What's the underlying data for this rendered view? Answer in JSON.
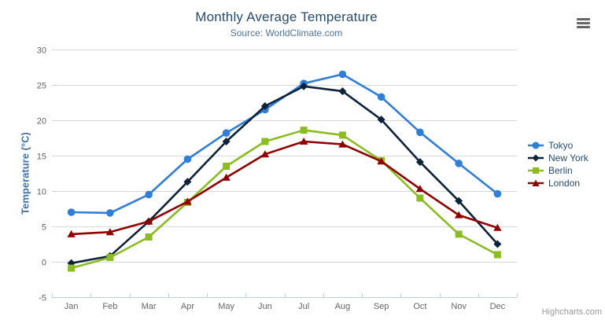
{
  "header": {
    "title": "Monthly Average Temperature",
    "subtitle": "Source: WorldClimate.com"
  },
  "credits": "Highcharts.com",
  "icons": {
    "context_menu": "hamburger-menu"
  },
  "colors": {
    "title": "#274b6d",
    "subtitle": "#4d759e",
    "legend_text": "#274b6d",
    "axis_label": "#666666",
    "axis_line": "#c0d0e0",
    "gridline": "#d8d8d8",
    "yaxis_title": "#4572a7",
    "credits": "#999999"
  },
  "chart_data": {
    "type": "line",
    "title": "Monthly Average Temperature",
    "subtitle": "Source: WorldClimate.com",
    "xlabel": "",
    "ylabel": "Temperature (°C)",
    "ylim": [
      -5,
      30
    ],
    "ytick_step": 5,
    "yticks": [
      -5,
      0,
      5,
      10,
      15,
      20,
      25,
      30
    ],
    "grid": true,
    "legend_position": "right",
    "categories": [
      "Jan",
      "Feb",
      "Mar",
      "Apr",
      "May",
      "Jun",
      "Jul",
      "Aug",
      "Sep",
      "Oct",
      "Nov",
      "Dec"
    ],
    "series": [
      {
        "name": "Tokyo",
        "color": "#2f7ed8",
        "marker": "circle",
        "values": [
          7.0,
          6.9,
          9.5,
          14.5,
          18.2,
          21.5,
          25.2,
          26.5,
          23.3,
          18.3,
          13.9,
          9.6
        ]
      },
      {
        "name": "New York",
        "color": "#0d233a",
        "marker": "diamond",
        "values": [
          -0.2,
          0.8,
          5.7,
          11.3,
          17.0,
          22.0,
          24.8,
          24.1,
          20.1,
          14.1,
          8.6,
          2.5
        ]
      },
      {
        "name": "Berlin",
        "color": "#8bbc21",
        "marker": "square",
        "values": [
          -0.9,
          0.6,
          3.5,
          8.4,
          13.5,
          17.0,
          18.6,
          17.9,
          14.3,
          9.0,
          3.9,
          1.0
        ]
      },
      {
        "name": "London",
        "color": "#910000",
        "marker": "triangle",
        "values": [
          3.9,
          4.2,
          5.7,
          8.5,
          11.9,
          15.2,
          17.0,
          16.6,
          14.2,
          10.3,
          6.6,
          4.8
        ]
      }
    ]
  }
}
